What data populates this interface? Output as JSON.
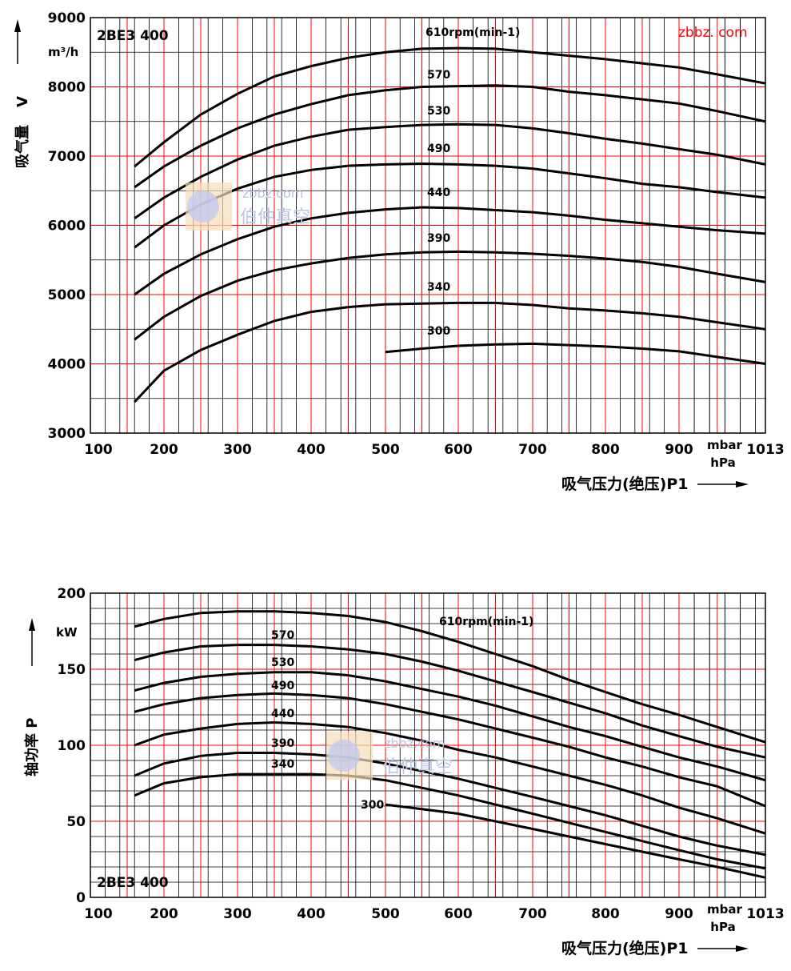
{
  "watermark": {
    "site": "zbbz.com",
    "cn": "伯仲真空",
    "brand": "zbbz. com"
  },
  "chart_data": [
    {
      "type": "line",
      "model": "2BE3 400",
      "ylabel": "吸气量 V",
      "yunit": "m³/h",
      "xlabel": "吸气压力(绝压)P1",
      "xunit_top": "mbar",
      "xunit_bottom": "hPa",
      "xticks": [
        100,
        200,
        300,
        400,
        500,
        600,
        700,
        800,
        900,
        1013
      ],
      "yticks": [
        3000,
        4000,
        5000,
        6000,
        7000,
        8000,
        9000
      ],
      "xlim": [
        100,
        1013
      ],
      "ylim": [
        3000,
        9000
      ],
      "grid": true,
      "series": [
        {
          "name": "610rpm(min-1)",
          "x": [
            160,
            200,
            250,
            300,
            350,
            400,
            450,
            500,
            550,
            600,
            650,
            700,
            750,
            800,
            850,
            900,
            950,
            1013
          ],
          "y": [
            6850,
            7200,
            7600,
            7900,
            8150,
            8300,
            8420,
            8500,
            8550,
            8560,
            8550,
            8500,
            8450,
            8400,
            8340,
            8280,
            8180,
            8050
          ]
        },
        {
          "name": "570",
          "x": [
            160,
            200,
            250,
            300,
            350,
            400,
            450,
            500,
            550,
            600,
            650,
            700,
            750,
            800,
            850,
            900,
            950,
            1013
          ],
          "y": [
            6550,
            6850,
            7150,
            7400,
            7600,
            7750,
            7880,
            7950,
            8000,
            8010,
            8020,
            8000,
            7930,
            7880,
            7820,
            7760,
            7650,
            7500
          ]
        },
        {
          "name": "530",
          "x": [
            160,
            200,
            250,
            300,
            350,
            400,
            450,
            500,
            550,
            600,
            650,
            700,
            750,
            800,
            850,
            900,
            950,
            1013
          ],
          "y": [
            6100,
            6400,
            6700,
            6950,
            7150,
            7280,
            7380,
            7420,
            7450,
            7460,
            7450,
            7400,
            7330,
            7250,
            7180,
            7100,
            7020,
            6880
          ]
        },
        {
          "name": "490",
          "x": [
            160,
            200,
            250,
            300,
            350,
            400,
            450,
            500,
            550,
            600,
            650,
            700,
            750,
            800,
            850,
            900,
            950,
            1013
          ],
          "y": [
            5680,
            6000,
            6300,
            6530,
            6700,
            6800,
            6860,
            6880,
            6890,
            6880,
            6860,
            6820,
            6750,
            6680,
            6600,
            6550,
            6480,
            6400
          ]
        },
        {
          "name": "440",
          "x": [
            160,
            200,
            250,
            300,
            350,
            400,
            450,
            500,
            550,
            600,
            650,
            700,
            750,
            800,
            850,
            900,
            950,
            1013
          ],
          "y": [
            5000,
            5300,
            5580,
            5800,
            5980,
            6100,
            6180,
            6230,
            6260,
            6250,
            6220,
            6190,
            6140,
            6080,
            6030,
            5980,
            5930,
            5880
          ]
        },
        {
          "name": "390",
          "x": [
            160,
            200,
            250,
            300,
            350,
            400,
            450,
            500,
            550,
            600,
            650,
            700,
            750,
            800,
            850,
            900,
            950,
            1013
          ],
          "y": [
            4350,
            4680,
            4980,
            5200,
            5350,
            5450,
            5530,
            5580,
            5610,
            5620,
            5610,
            5590,
            5560,
            5520,
            5470,
            5400,
            5300,
            5180
          ]
        },
        {
          "name": "340",
          "x": [
            160,
            200,
            250,
            300,
            350,
            400,
            450,
            500,
            550,
            600,
            650,
            700,
            750,
            800,
            850,
            900,
            950,
            1013
          ],
          "y": [
            3450,
            3900,
            4200,
            4420,
            4620,
            4750,
            4820,
            4860,
            4870,
            4880,
            4880,
            4850,
            4800,
            4770,
            4730,
            4680,
            4600,
            4500
          ]
        },
        {
          "name": "300",
          "x": [
            500,
            550,
            600,
            650,
            700,
            750,
            800,
            850,
            900,
            950,
            1013
          ],
          "y": [
            4170,
            4220,
            4260,
            4280,
            4290,
            4270,
            4250,
            4220,
            4180,
            4100,
            4000
          ]
        }
      ]
    },
    {
      "type": "line",
      "model": "2BE3 400",
      "ylabel": "轴功率 P",
      "yunit": "kW",
      "xlabel": "吸气压力(绝压)P1",
      "xunit_top": "mbar",
      "xunit_bottom": "hPa",
      "xticks": [
        100,
        200,
        300,
        400,
        500,
        600,
        700,
        800,
        900,
        1013
      ],
      "yticks": [
        0,
        50,
        100,
        150,
        200
      ],
      "xlim": [
        100,
        1013
      ],
      "ylim": [
        0,
        200
      ],
      "grid": true,
      "series": [
        {
          "name": "610rpm(min-1)",
          "x": [
            160,
            200,
            250,
            300,
            350,
            400,
            450,
            500,
            550,
            600,
            650,
            700,
            750,
            800,
            850,
            900,
            950,
            1013
          ],
          "y": [
            178,
            183,
            187,
            188,
            188,
            187,
            185,
            181,
            175,
            168,
            160,
            152,
            143,
            135,
            127,
            120,
            112,
            102
          ]
        },
        {
          "name": "570",
          "x": [
            160,
            200,
            250,
            300,
            350,
            400,
            450,
            500,
            550,
            600,
            650,
            700,
            750,
            800,
            850,
            900,
            950,
            1013
          ],
          "y": [
            156,
            161,
            165,
            166,
            166,
            165,
            163,
            160,
            155,
            149,
            142,
            135,
            128,
            121,
            113,
            106,
            99,
            92
          ]
        },
        {
          "name": "530",
          "x": [
            160,
            200,
            250,
            300,
            350,
            400,
            450,
            500,
            550,
            600,
            650,
            700,
            750,
            800,
            850,
            900,
            950,
            1013
          ],
          "y": [
            136,
            141,
            145,
            147,
            148,
            148,
            146,
            142,
            137,
            132,
            126,
            119,
            112,
            106,
            99,
            92,
            86,
            77
          ]
        },
        {
          "name": "490",
          "x": [
            160,
            200,
            250,
            300,
            350,
            400,
            450,
            500,
            550,
            600,
            650,
            700,
            750,
            800,
            850,
            900,
            950,
            1013
          ],
          "y": [
            122,
            127,
            131,
            133,
            134,
            133,
            131,
            127,
            122,
            117,
            111,
            105,
            99,
            92,
            86,
            79,
            73,
            60
          ]
        },
        {
          "name": "440",
          "x": [
            160,
            200,
            250,
            300,
            350,
            400,
            450,
            500,
            550,
            600,
            650,
            700,
            750,
            800,
            850,
            900,
            950,
            1013
          ],
          "y": [
            100,
            107,
            111,
            114,
            115,
            114,
            112,
            108,
            103,
            97,
            92,
            86,
            80,
            74,
            67,
            59,
            52,
            42
          ]
        },
        {
          "name": "390",
          "x": [
            160,
            200,
            250,
            300,
            350,
            400,
            450,
            500,
            550,
            600,
            650,
            700,
            750,
            800,
            850,
            900,
            950,
            1013
          ],
          "y": [
            80,
            88,
            93,
            95,
            95,
            94,
            92,
            88,
            83,
            78,
            72,
            66,
            60,
            54,
            47,
            40,
            34,
            28
          ]
        },
        {
          "name": "340",
          "x": [
            160,
            200,
            250,
            300,
            350,
            400,
            450,
            500,
            550,
            600,
            650,
            700,
            750,
            800,
            850,
            900,
            950,
            1013
          ],
          "y": [
            67,
            75,
            79,
            81,
            81,
            81,
            80,
            77,
            72,
            67,
            61,
            55,
            49,
            43,
            37,
            31,
            25,
            19
          ]
        },
        {
          "name": "300",
          "x": [
            500,
            550,
            600,
            650,
            700,
            750,
            800,
            850,
            900,
            950,
            1013
          ],
          "y": [
            61,
            58,
            55,
            50,
            45,
            40,
            35,
            30,
            25,
            20,
            13
          ]
        }
      ]
    }
  ]
}
